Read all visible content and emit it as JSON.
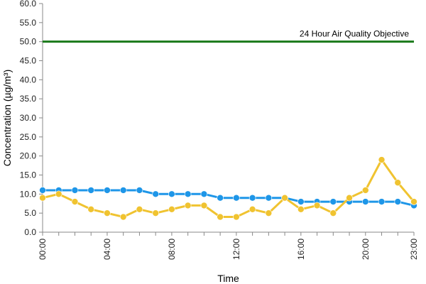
{
  "chart_data": {
    "type": "line",
    "xlabel": "Time",
    "ylabel": "Concentration (µg/m³)",
    "ylim": [
      0,
      60
    ],
    "y_ticks": [
      "0.0",
      "5.0",
      "10.0",
      "15.0",
      "20.0",
      "25.0",
      "30.0",
      "35.0",
      "40.0",
      "45.0",
      "50.0",
      "55.0",
      "60.0"
    ],
    "x_tick_labels": [
      "00:00",
      "04:00",
      "08:00",
      "12:00",
      "16:00",
      "20:00",
      "23:00"
    ],
    "x_tick_hours": [
      0,
      4,
      8,
      12,
      16,
      20,
      23
    ],
    "grid": false,
    "x": [
      0,
      1,
      2,
      3,
      4,
      5,
      6,
      7,
      8,
      9,
      10,
      11,
      12,
      13,
      14,
      15,
      16,
      17,
      18,
      19,
      20,
      21,
      22,
      23
    ],
    "series": [
      {
        "color": "#1e96e8",
        "values": [
          11,
          11,
          11,
          11,
          11,
          11,
          11,
          10,
          10,
          10,
          10,
          9,
          9,
          9,
          9,
          9,
          8,
          8,
          8,
          8,
          8,
          8,
          8,
          7
        ]
      },
      {
        "color": "#f0c330",
        "values": [
          9,
          10,
          8,
          6,
          5,
          4,
          6,
          5,
          6,
          7,
          7,
          4,
          4,
          6,
          5,
          9,
          6,
          7,
          5,
          9,
          11,
          19,
          13,
          8
        ]
      }
    ],
    "reference_line": {
      "value": 50,
      "label": "24 Hour Air Quality Objective",
      "color": "#1a7a1a"
    }
  }
}
